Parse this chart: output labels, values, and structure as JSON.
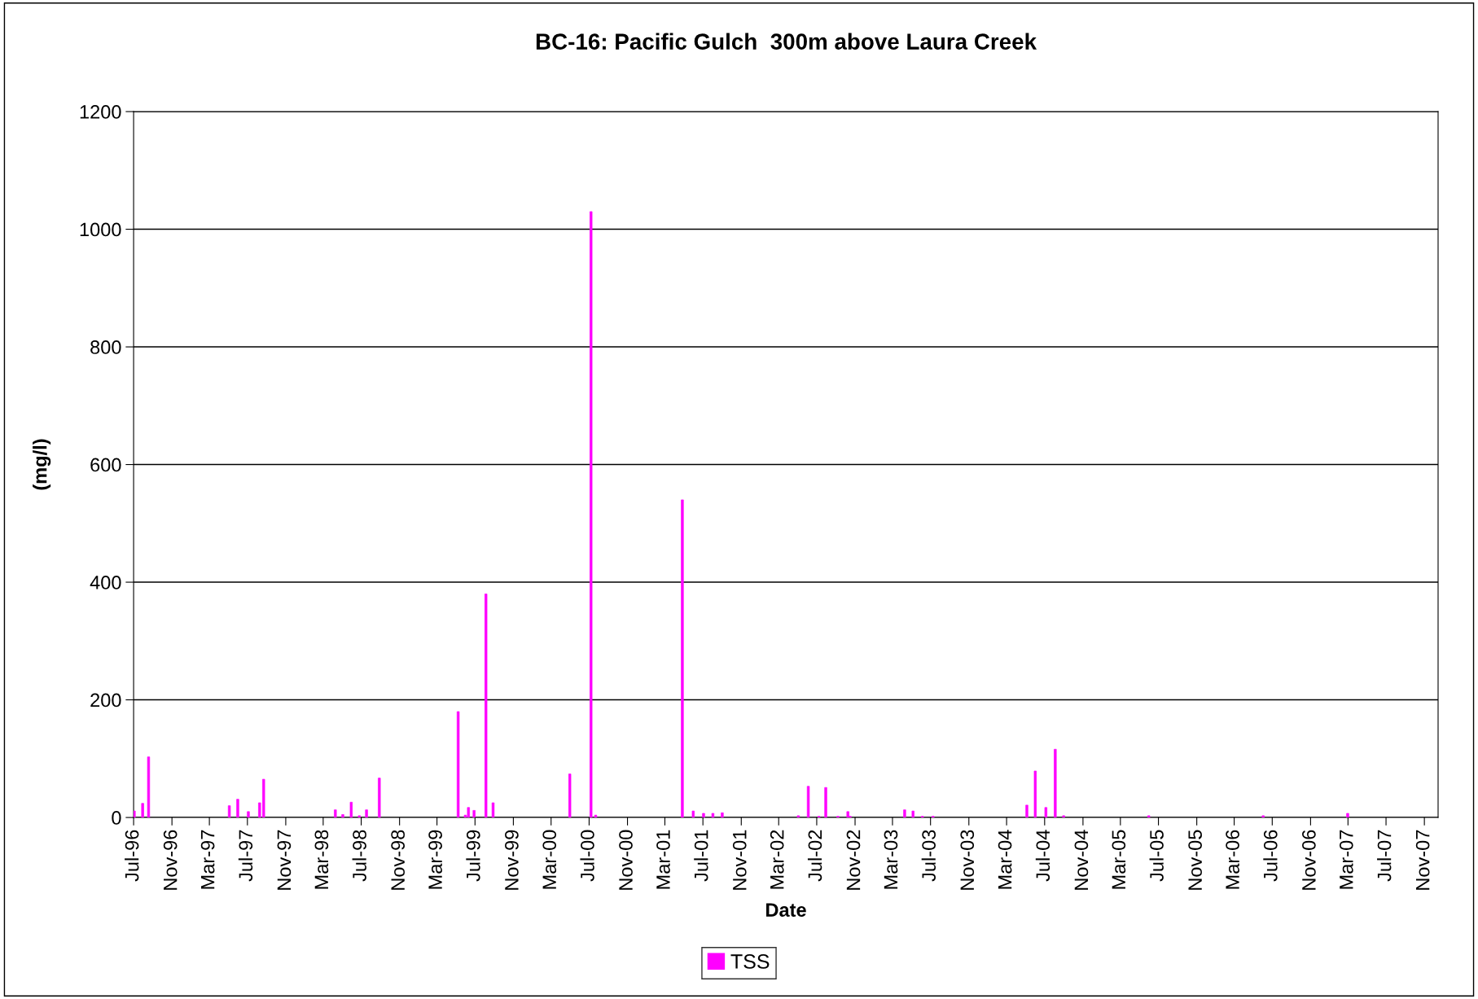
{
  "chart_data": {
    "type": "bar",
    "title": "BC-16: Pacific Gulch  300m above Laura Creek",
    "xlabel": "Date",
    "ylabel": "(mg/l)",
    "x": [
      "1996-07-03",
      "1996-07-30",
      "1996-08-18",
      "1997-05-04",
      "1997-05-31",
      "1997-07-04",
      "1997-08-09",
      "1997-08-22",
      "1998-04-09",
      "1998-05-03",
      "1998-05-30",
      "1998-06-25",
      "1998-07-18",
      "1998-08-28",
      "1999-05-08",
      "1999-05-31",
      "1999-06-10",
      "1999-06-28",
      "1999-08-05",
      "1999-08-28",
      "2000-04-30",
      "2000-07-07",
      "2000-07-22",
      "2001-04-26",
      "2001-05-31",
      "2001-07-03",
      "2001-08-02",
      "2001-09-01",
      "2002-05-03",
      "2002-06-04",
      "2002-07-08",
      "2002-07-30",
      "2002-09-07",
      "2002-10-09",
      "2002-10-16",
      "2003-04-09",
      "2003-05-06",
      "2003-06-05",
      "2003-07-09",
      "2004-05-05",
      "2004-06-01",
      "2004-07-05",
      "2004-08-04",
      "2004-08-31",
      "2005-05-31",
      "2006-06-02",
      "2007-02-28"
    ],
    "series": [
      {
        "name": "TSS",
        "color": "#ff00ff",
        "values": [
          11,
          24,
          103,
          20,
          31,
          10,
          25,
          65,
          13,
          5,
          26,
          3,
          13,
          67,
          180,
          4,
          17,
          12,
          380,
          25,
          74,
          1030,
          4,
          540,
          11,
          7,
          7,
          8,
          3,
          53,
          2,
          51,
          2,
          10,
          2,
          13,
          11,
          2,
          2,
          21,
          79,
          17,
          116,
          3,
          3,
          3,
          7
        ]
      }
    ],
    "xlim": [
      "1996-07-01",
      "2007-12-15"
    ],
    "xticks": [
      {
        "value": "1996-07-01",
        "label": "Jul-96"
      },
      {
        "value": "1996-11-01",
        "label": "Nov-96"
      },
      {
        "value": "1997-03-01",
        "label": "Mar-97"
      },
      {
        "value": "1997-07-01",
        "label": "Jul-97"
      },
      {
        "value": "1997-11-01",
        "label": "Nov-97"
      },
      {
        "value": "1998-03-01",
        "label": "Mar-98"
      },
      {
        "value": "1998-07-01",
        "label": "Jul-98"
      },
      {
        "value": "1998-11-01",
        "label": "Nov-98"
      },
      {
        "value": "1999-03-01",
        "label": "Mar-99"
      },
      {
        "value": "1999-07-01",
        "label": "Jul-99"
      },
      {
        "value": "1999-11-01",
        "label": "Nov-99"
      },
      {
        "value": "2000-03-01",
        "label": "Mar-00"
      },
      {
        "value": "2000-07-01",
        "label": "Jul-00"
      },
      {
        "value": "2000-11-01",
        "label": "Nov-00"
      },
      {
        "value": "2001-03-01",
        "label": "Mar-01"
      },
      {
        "value": "2001-07-01",
        "label": "Jul-01"
      },
      {
        "value": "2001-11-01",
        "label": "Nov-01"
      },
      {
        "value": "2002-03-01",
        "label": "Mar-02"
      },
      {
        "value": "2002-07-01",
        "label": "Jul-02"
      },
      {
        "value": "2002-11-01",
        "label": "Nov-02"
      },
      {
        "value": "2003-03-01",
        "label": "Mar-03"
      },
      {
        "value": "2003-07-01",
        "label": "Jul-03"
      },
      {
        "value": "2003-11-01",
        "label": "Nov-03"
      },
      {
        "value": "2004-03-01",
        "label": "Mar-04"
      },
      {
        "value": "2004-07-01",
        "label": "Jul-04"
      },
      {
        "value": "2004-11-01",
        "label": "Nov-04"
      },
      {
        "value": "2005-03-01",
        "label": "Mar-05"
      },
      {
        "value": "2005-07-01",
        "label": "Jul-05"
      },
      {
        "value": "2005-11-01",
        "label": "Nov-05"
      },
      {
        "value": "2006-03-01",
        "label": "Mar-06"
      },
      {
        "value": "2006-07-01",
        "label": "Jul-06"
      },
      {
        "value": "2006-11-01",
        "label": "Nov-06"
      },
      {
        "value": "2007-03-01",
        "label": "Mar-07"
      },
      {
        "value": "2007-07-01",
        "label": "Jul-07"
      },
      {
        "value": "2007-11-01",
        "label": "Nov-07"
      }
    ],
    "ylim": [
      0,
      1200
    ],
    "yticks": [
      0,
      200,
      400,
      600,
      800,
      1000,
      1200
    ],
    "grid": "y",
    "legend": "bottom"
  }
}
